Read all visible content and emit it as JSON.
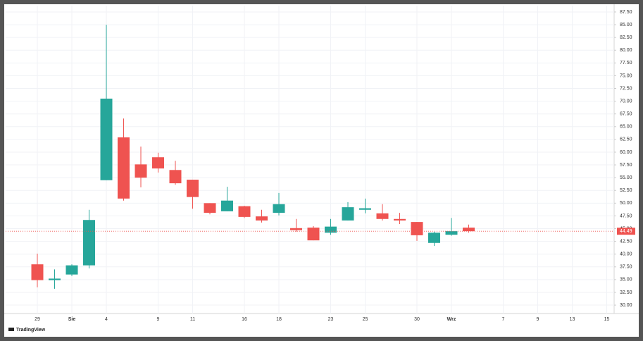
{
  "chart_data": {
    "type": "candlestick",
    "categories": [
      "29",
      null,
      "Sie",
      null,
      "4",
      null,
      null,
      "9",
      null,
      "11",
      null,
      null,
      "16",
      null,
      "18",
      null,
      null,
      "23",
      null,
      "25",
      null,
      null,
      "30",
      null,
      "Wrz",
      null,
      null,
      "7",
      null,
      "9",
      null,
      "13",
      null,
      "15"
    ],
    "open": [
      38.0,
      34.9,
      36.0,
      37.8,
      54.5,
      62.9,
      57.6,
      59.0,
      56.5,
      54.6,
      50.0,
      48.4,
      49.4,
      47.4,
      48.1,
      45.1,
      45.2,
      44.2,
      46.6,
      48.7,
      48.0,
      46.9,
      46.3,
      42.2,
      43.8,
      45.2,
      null,
      null,
      null,
      null,
      null,
      null,
      null,
      null
    ],
    "high": [
      40.1,
      37.0,
      38.0,
      48.7,
      85.0,
      66.6,
      61.1,
      59.9,
      58.3,
      54.6,
      50.0,
      53.2,
      49.5,
      48.7,
      52.0,
      46.9,
      45.5,
      46.9,
      50.2,
      50.9,
      49.8,
      48.1,
      46.3,
      44.4,
      47.1,
      45.8,
      null,
      null,
      null,
      null,
      null,
      null,
      null,
      null
    ],
    "low": [
      33.5,
      33.2,
      35.7,
      37.2,
      54.5,
      50.5,
      53.1,
      56.0,
      53.6,
      48.9,
      47.8,
      48.4,
      47.1,
      46.2,
      47.6,
      44.4,
      42.7,
      43.8,
      46.6,
      48.0,
      46.6,
      45.9,
      42.6,
      41.6,
      43.6,
      44.2,
      null,
      null,
      null,
      null,
      null,
      null,
      null,
      null
    ],
    "close": [
      34.9,
      35.2,
      37.8,
      46.7,
      70.5,
      50.9,
      55.0,
      56.8,
      53.9,
      51.2,
      48.1,
      50.5,
      47.3,
      46.6,
      49.8,
      44.7,
      42.7,
      45.4,
      49.2,
      49.0,
      46.9,
      46.6,
      43.7,
      44.2,
      44.5,
      44.49,
      null,
      null,
      null,
      null,
      null,
      null,
      null,
      null
    ],
    "up_color": "#26a69a",
    "down_color": "#ef5350",
    "last_price": 44.49,
    "ylim": [
      28.35,
      88.74
    ],
    "yticks": [
      {
        "value": 30,
        "label": "30.00"
      },
      {
        "value": 32.5,
        "label": "32.50"
      },
      {
        "value": 35,
        "label": "35.00"
      },
      {
        "value": 37.5,
        "label": "37.50"
      },
      {
        "value": 40,
        "label": "40.00"
      },
      {
        "value": 42.5,
        "label": "42.50"
      },
      {
        "value": 45,
        "label": "45.00"
      },
      {
        "value": 47.5,
        "label": "47.50"
      },
      {
        "value": 50,
        "label": "50.00"
      },
      {
        "value": 52.5,
        "label": "52.50"
      },
      {
        "value": 55,
        "label": "55.00"
      },
      {
        "value": 57.5,
        "label": "57.50"
      },
      {
        "value": 60,
        "label": "60.00"
      },
      {
        "value": 62.5,
        "label": "62.50"
      },
      {
        "value": 65,
        "label": "65.00"
      },
      {
        "value": 67.5,
        "label": "67.50"
      },
      {
        "value": 70,
        "label": "70.00"
      },
      {
        "value": 72.5,
        "label": "72.50"
      },
      {
        "value": 75,
        "label": "75.00"
      },
      {
        "value": 77.5,
        "label": "77.50"
      },
      {
        "value": 80,
        "label": "80.00"
      },
      {
        "value": 82.5,
        "label": "82.50"
      },
      {
        "value": 85,
        "label": "85.00"
      },
      {
        "value": 87.5,
        "label": "87.50"
      }
    ],
    "grid": true,
    "branding": "TradingView"
  }
}
